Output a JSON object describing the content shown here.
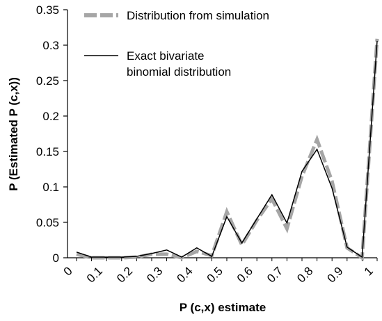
{
  "chart_data": {
    "type": "line",
    "title": "",
    "xlabel": "P (c,x) estimate",
    "ylabel": "P (Estimated P (c,x))",
    "xlim": [
      0,
      1.03
    ],
    "ylim": [
      0,
      0.35
    ],
    "x_ticks": [
      "0",
      "0.1",
      "0.2",
      "0.3",
      "0.4",
      "0.5",
      "0.6",
      "0.7",
      "0.8",
      "0.9",
      "1"
    ],
    "y_ticks": [
      "0",
      "0.05",
      "0.1",
      "0.15",
      "0.2",
      "0.25",
      "0.3",
      "0.35"
    ],
    "grid": false,
    "legend_position": "top-left",
    "x": [
      0.03,
      0.08,
      0.13,
      0.18,
      0.23,
      0.28,
      0.33,
      0.38,
      0.43,
      0.48,
      0.53,
      0.58,
      0.63,
      0.68,
      0.73,
      0.78,
      0.83,
      0.88,
      0.93,
      0.98,
      1.03
    ],
    "series": [
      {
        "name": "Distribution from simulation",
        "color": "#a6a6a6",
        "values": [
          0.005,
          0.0,
          0.0,
          0.0,
          0.001,
          0.005,
          0.005,
          0.0,
          0.009,
          0.003,
          0.065,
          0.018,
          0.053,
          0.083,
          0.041,
          0.115,
          0.167,
          0.108,
          0.014,
          0.0,
          0.309
        ]
      },
      {
        "name": "Exact bivariate binomial distribution",
        "color": "#000000",
        "values": [
          0.008,
          0.001,
          0.001,
          0.001,
          0.002,
          0.006,
          0.011,
          0.001,
          0.014,
          0.002,
          0.058,
          0.021,
          0.055,
          0.089,
          0.049,
          0.122,
          0.153,
          0.098,
          0.015,
          0.001,
          0.306
        ]
      }
    ]
  }
}
